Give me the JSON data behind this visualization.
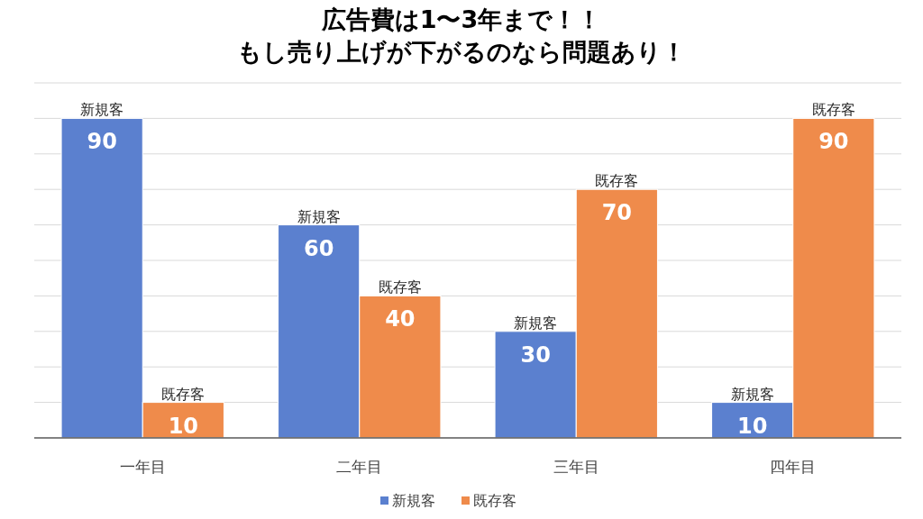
{
  "chart_data": {
    "type": "bar",
    "title": "広告費は1〜3年まで！！",
    "subtitle": "もし売り上げが下がるのなら問題あり！",
    "categories": [
      "一年目",
      "二年目",
      "三年目",
      "四年目"
    ],
    "series": [
      {
        "name": "新規客",
        "color": "#5b80cf",
        "values": [
          90,
          60,
          30,
          10
        ]
      },
      {
        "name": "既存客",
        "color": "#ef8b4b",
        "values": [
          10,
          40,
          70,
          90
        ]
      }
    ],
    "ylim": [
      0,
      100
    ],
    "yticks": [
      {
        "value": 0,
        "label": null
      },
      {
        "value": 10,
        "label": null
      },
      {
        "value": 20,
        "label": null
      },
      {
        "value": 30,
        "label": null
      },
      {
        "value": 40,
        "label": null
      },
      {
        "value": 50,
        "label": null
      },
      {
        "value": 60,
        "label": null
      },
      {
        "value": 70,
        "label": null
      },
      {
        "value": 80,
        "label": null
      },
      {
        "value": 90,
        "label": null
      },
      {
        "value": 100,
        "label": null
      }
    ],
    "grid": "y",
    "data_labels": true,
    "legend": "bottom",
    "tick_labels": "x"
  }
}
